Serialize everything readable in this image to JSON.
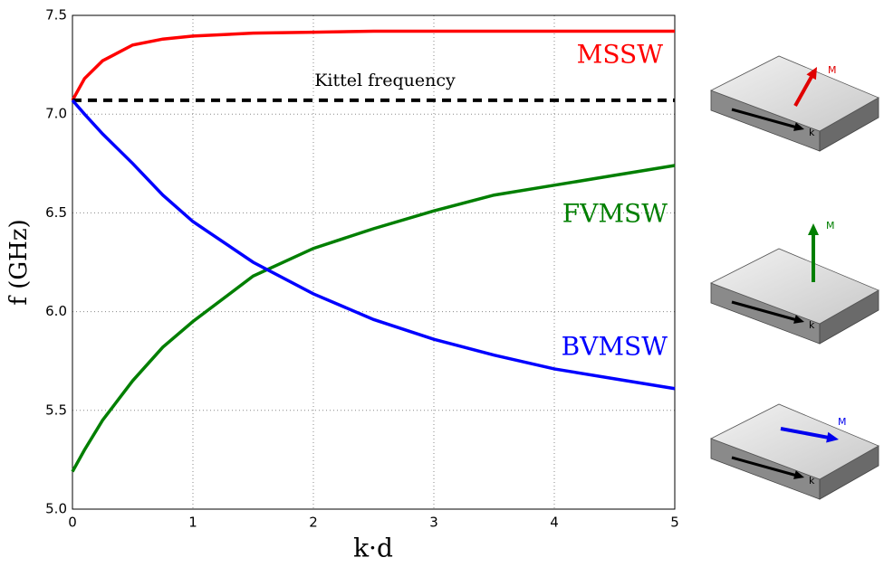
{
  "chart_data": {
    "type": "line",
    "x_label": "k·d",
    "y_label": "f (GHz)",
    "x": [
      0,
      0.1,
      0.25,
      0.5,
      0.75,
      1,
      1.5,
      2,
      2.5,
      3,
      3.5,
      4,
      4.5,
      5
    ],
    "series": [
      {
        "name": "MSSW",
        "color": "#ff0000",
        "linestyle": "solid",
        "values": [
          7.07,
          7.18,
          7.27,
          7.35,
          7.38,
          7.395,
          7.41,
          7.415,
          7.42,
          7.42,
          7.42,
          7.42,
          7.42,
          7.42
        ]
      },
      {
        "name": "Kittel frequency",
        "color": "#000000",
        "linestyle": "dashed",
        "values": [
          7.07,
          7.07,
          7.07,
          7.07,
          7.07,
          7.07,
          7.07,
          7.07,
          7.07,
          7.07,
          7.07,
          7.07,
          7.07,
          7.07
        ]
      },
      {
        "name": "FVMSW",
        "color": "#007f00",
        "linestyle": "solid",
        "values": [
          5.19,
          5.3,
          5.45,
          5.65,
          5.82,
          5.95,
          6.18,
          6.32,
          6.42,
          6.51,
          6.59,
          6.64,
          6.69,
          6.74
        ]
      },
      {
        "name": "BVMSW",
        "color": "#0000ff",
        "linestyle": "solid",
        "values": [
          7.07,
          7.0,
          6.9,
          6.75,
          6.59,
          6.456,
          6.25,
          6.09,
          5.96,
          5.86,
          5.78,
          5.71,
          5.66,
          5.61
        ]
      }
    ],
    "xlim": [
      0,
      5
    ],
    "xticks": [
      0,
      1,
      2,
      3,
      4,
      5
    ],
    "ylim": [
      5,
      7.5
    ],
    "yticks": [
      {
        "value": 5,
        "label": "5.0"
      },
      5.5,
      {
        "value": 6,
        "label": "6.0"
      },
      6.5,
      {
        "value": 7,
        "label": "7.0"
      },
      7.5
    ],
    "grid": true
  },
  "illustrations": [
    {
      "magnetization_label": "M",
      "wavevector_label": "k"
    },
    {
      "magnetization_label": "M",
      "wavevector_label": "k"
    },
    {
      "magnetization_label": "M",
      "wavevector_label": "k"
    }
  ]
}
